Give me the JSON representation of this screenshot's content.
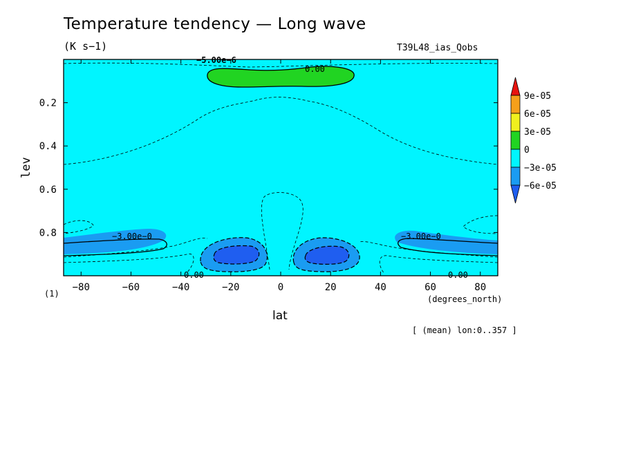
{
  "chart_data": {
    "type": "contour",
    "title": "Temperature tendency — Long wave",
    "units": "(K s−1)",
    "run_label": "T39L48_ias_Qobs",
    "xlabel": "lat",
    "x_units": "(degrees_north)",
    "ylabel": "lev",
    "xlim": [
      -87,
      87
    ],
    "ylim": [
      1.0,
      0.0
    ],
    "x_ticks": [
      -80,
      -60,
      -40,
      -20,
      0,
      20,
      40,
      60,
      80
    ],
    "x_tick_labels": [
      "−80",
      "−60",
      "−40",
      "−20",
      "0",
      "20",
      "40",
      "60",
      "80"
    ],
    "y_ticks": [
      0.2,
      0.4,
      0.6,
      0.8
    ],
    "y_tick_labels": [
      "0.2",
      "0.4",
      "0.6",
      "0.8"
    ],
    "y_axis_extra_label": "(1)",
    "footnote": "[ (mean) lon:0..357 ]",
    "colorbar": {
      "levels": [
        "9e-05",
        "6e-05",
        "3e-05",
        "0",
        "−3e-05",
        "−6e-05"
      ],
      "colors": [
        "#e8140f",
        "#f5a01a",
        "#f0f01e",
        "#21d422",
        "#00f5ff",
        "#1a9cf2",
        "#1f5ef0"
      ]
    },
    "contour_labels": [
      "−5.00e−6",
      "0.00",
      "−3.00e−0",
      "−3.00e−0",
      "0.00",
      "0.00"
    ],
    "regions": [
      {
        "name": "upper-positive",
        "value_range": "0 to 3e-05",
        "lat": [
          -28,
          30
        ],
        "lev": [
          0.04,
          0.12
        ]
      },
      {
        "name": "lower-left-negative",
        "value_range": "-3e-05 to -6e-05",
        "lat": [
          -87,
          -45
        ],
        "lev": [
          0.8,
          0.9
        ]
      },
      {
        "name": "lower-right-negative",
        "value_range": "-3e-05 to -6e-05",
        "lat": [
          45,
          87
        ],
        "lev": [
          0.8,
          0.9
        ]
      },
      {
        "name": "lower-central-left-min",
        "value_range": "< -6e-05",
        "lat": [
          -30,
          -8
        ],
        "lev": [
          0.84,
          0.96
        ]
      },
      {
        "name": "lower-central-right-min",
        "value_range": "< -6e-05",
        "lat": [
          8,
          30
        ],
        "lev": [
          0.84,
          0.96
        ]
      }
    ]
  }
}
